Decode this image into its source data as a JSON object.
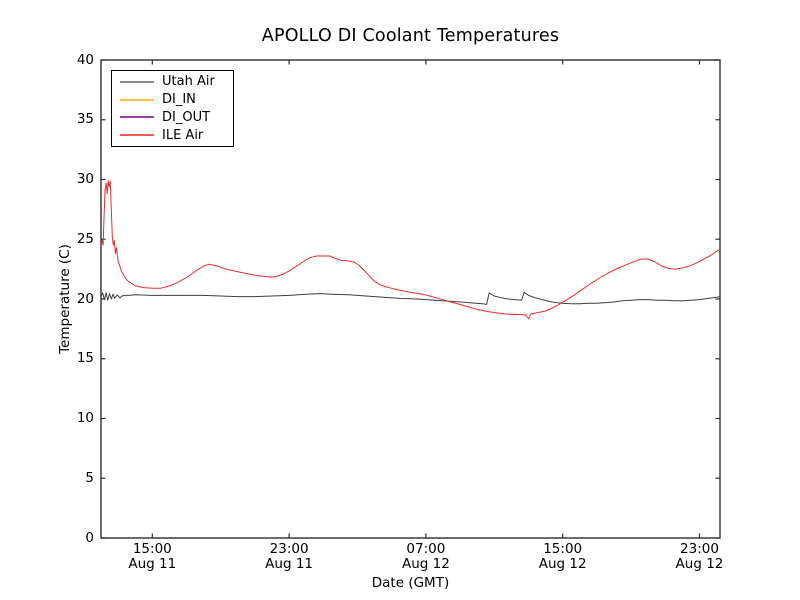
{
  "chart_data": {
    "type": "line",
    "title": "APOLLO DI Coolant Temperatures",
    "xlabel": "Date (GMT)",
    "ylabel": "Temperature (C)",
    "ylim": [
      0,
      40
    ],
    "yticks": [
      0,
      5,
      10,
      15,
      20,
      25,
      30,
      35,
      40
    ],
    "x_unit": "hours since Aug 11 00:00 GMT",
    "xlim_hours": [
      12.0,
      48.2
    ],
    "grid": false,
    "frame_color": "#2e2e2e",
    "legend_position": "upper left",
    "xticks": [
      {
        "hours": 15,
        "time": "15:00",
        "date": "Aug 11"
      },
      {
        "hours": 23,
        "time": "23:00",
        "date": "Aug 11"
      },
      {
        "hours": 31,
        "time": "07:00",
        "date": "Aug 12"
      },
      {
        "hours": 39,
        "time": "15:00",
        "date": "Aug 12"
      },
      {
        "hours": 47,
        "time": "23:00",
        "date": "Aug 12"
      }
    ],
    "legend": [
      {
        "label": "Utah Air",
        "color": "#8c8c8c"
      },
      {
        "label": "DI_IN",
        "color": "#ffc04d"
      },
      {
        "label": "DI_OUT",
        "color": "#9b3fa5"
      },
      {
        "label": "ILE Air",
        "color": "#ff5a5a"
      }
    ],
    "series": [
      {
        "name": "Utah Air",
        "color": "#3f3f3f",
        "x": [
          12.0,
          12.1,
          12.2,
          12.3,
          12.4,
          12.5,
          12.6,
          12.7,
          12.8,
          12.95,
          13.1,
          13.3,
          13.6,
          14.0,
          15.0,
          16.0,
          17.0,
          18.0,
          19.0,
          20.0,
          21.0,
          22.0,
          23.0,
          24.0,
          24.8,
          25.5,
          26.5,
          27.5,
          28.5,
          29.5,
          30.5,
          31.5,
          32.5,
          33.5,
          34.3,
          34.55,
          34.7,
          35.0,
          35.4,
          35.8,
          36.2,
          36.6,
          36.75,
          37.0,
          37.4,
          37.8,
          38.2,
          38.6,
          39.0,
          39.5,
          40.0,
          40.5,
          41.0,
          41.5,
          42.0,
          42.5,
          43.0,
          43.5,
          44.0,
          44.5,
          45.0,
          45.5,
          46.0,
          46.5,
          47.0,
          47.5,
          48.0,
          48.2
        ],
        "y": [
          20.2,
          20.5,
          19.95,
          20.5,
          19.9,
          20.45,
          20.0,
          20.4,
          20.05,
          20.35,
          20.1,
          20.3,
          20.3,
          20.35,
          20.3,
          20.3,
          20.3,
          20.3,
          20.25,
          20.2,
          20.2,
          20.25,
          20.3,
          20.4,
          20.45,
          20.4,
          20.35,
          20.25,
          20.15,
          20.05,
          20.0,
          19.9,
          19.8,
          19.7,
          19.6,
          19.55,
          20.5,
          20.25,
          20.1,
          20.0,
          19.95,
          19.9,
          20.55,
          20.3,
          20.1,
          19.95,
          19.8,
          19.7,
          19.65,
          19.6,
          19.6,
          19.65,
          19.65,
          19.7,
          19.75,
          19.85,
          19.9,
          19.95,
          19.95,
          19.9,
          19.9,
          19.85,
          19.85,
          19.9,
          19.95,
          20.05,
          20.15,
          20.2
        ]
      },
      {
        "name": "DI_IN",
        "color": "#ffc04d",
        "x": [],
        "y": []
      },
      {
        "name": "DI_OUT",
        "color": "#9b3fa5",
        "x": [],
        "y": []
      },
      {
        "name": "ILE Air",
        "color": "#e62e2e",
        "x": [
          12.0,
          12.06,
          12.12,
          12.18,
          12.24,
          12.3,
          12.36,
          12.42,
          12.48,
          12.54,
          12.6,
          12.66,
          12.72,
          12.78,
          12.84,
          12.9,
          13.0,
          13.2,
          13.5,
          14.0,
          14.5,
          15.0,
          15.5,
          16.0,
          16.5,
          17.0,
          17.5,
          18.0,
          18.3,
          18.7,
          19.2,
          19.6,
          20.1,
          20.6,
          21.2,
          21.8,
          22.2,
          22.6,
          23.0,
          23.4,
          23.8,
          24.2,
          24.6,
          25.0,
          25.4,
          25.7,
          26.0,
          26.4,
          26.8,
          27.1,
          27.5,
          27.9,
          28.3,
          28.7,
          29.1,
          29.6,
          30.1,
          30.6,
          31.1,
          31.6,
          32.1,
          32.6,
          33.1,
          33.6,
          34.1,
          34.6,
          35.1,
          35.6,
          36.1,
          36.6,
          36.85,
          37.0,
          37.15,
          37.5,
          38.0,
          38.4,
          38.8,
          39.2,
          39.7,
          40.2,
          40.7,
          41.2,
          41.7,
          42.2,
          42.7,
          43.2,
          43.6,
          44.0,
          44.4,
          44.8,
          45.2,
          45.6,
          46.0,
          46.4,
          46.8,
          47.2,
          47.6,
          48.0,
          48.2
        ],
        "y": [
          24.4,
          24.9,
          24.5,
          27.0,
          29.2,
          29.7,
          28.8,
          29.9,
          29.4,
          29.9,
          27.5,
          25.2,
          24.5,
          24.9,
          23.8,
          24.3,
          23.2,
          22.3,
          21.6,
          21.1,
          20.95,
          20.9,
          20.9,
          21.1,
          21.4,
          21.8,
          22.3,
          22.75,
          22.9,
          22.8,
          22.55,
          22.4,
          22.25,
          22.1,
          21.95,
          21.85,
          21.85,
          22.05,
          22.35,
          22.7,
          23.1,
          23.45,
          23.6,
          23.6,
          23.6,
          23.4,
          23.25,
          23.2,
          23.1,
          22.8,
          22.25,
          21.6,
          21.2,
          21.0,
          20.85,
          20.7,
          20.55,
          20.45,
          20.3,
          20.1,
          19.9,
          19.7,
          19.5,
          19.3,
          19.1,
          18.95,
          18.85,
          18.75,
          18.7,
          18.7,
          18.65,
          18.35,
          18.75,
          18.85,
          19.0,
          19.25,
          19.55,
          19.9,
          20.35,
          20.85,
          21.35,
          21.8,
          22.2,
          22.55,
          22.85,
          23.15,
          23.35,
          23.35,
          23.1,
          22.75,
          22.55,
          22.5,
          22.6,
          22.75,
          23.0,
          23.3,
          23.6,
          24.0,
          24.15
        ]
      }
    ]
  }
}
